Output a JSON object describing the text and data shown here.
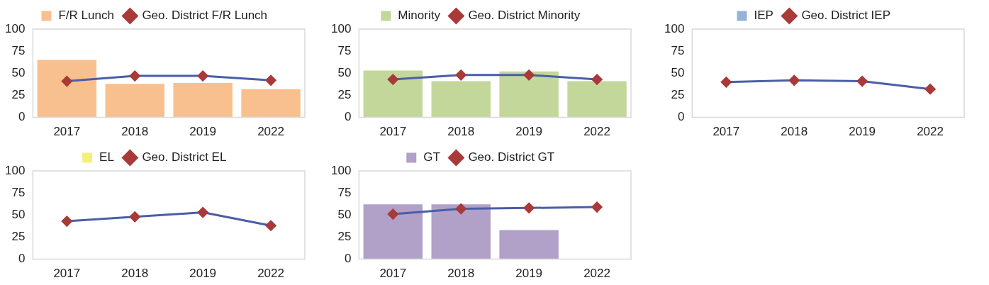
{
  "chart_data": [
    {
      "type": "bar",
      "categories": [
        "2017",
        "2018",
        "2019",
        "2022"
      ],
      "ylim": [
        0,
        100
      ],
      "yticks": [
        0,
        25,
        50,
        75,
        100
      ],
      "grid": false,
      "legend": "top",
      "series": [
        {
          "name": "F/R Lunch",
          "color": "#f9c08f",
          "values": [
            65,
            38,
            39,
            32
          ]
        },
        {
          "name": "Geo. District F/R Lunch",
          "type": "line",
          "color": "#4a5ea8",
          "colors": [
            "#a83a3a",
            "#a83a3a",
            "#a83a3a",
            "#a83a3a"
          ],
          "marker": "diamond",
          "values": [
            41,
            47,
            47,
            42
          ]
        }
      ]
    },
    {
      "type": "bar",
      "categories": [
        "2017",
        "2018",
        "2019",
        "2022"
      ],
      "ylim": [
        0,
        100
      ],
      "yticks": [
        0,
        25,
        50,
        75,
        100
      ],
      "grid": false,
      "legend": "top",
      "series": [
        {
          "name": "Minority",
          "color": "#c4d79b",
          "values": [
            53,
            41,
            52,
            41
          ]
        },
        {
          "name": "Geo. District Minority",
          "type": "line",
          "color": "#4a5ea8",
          "colors": [
            "#a83a3a",
            "#a83a3a",
            "#a83a3a",
            "#a83a3a"
          ],
          "marker": "diamond",
          "values": [
            43,
            48,
            48,
            43
          ]
        }
      ]
    },
    {
      "type": "bar",
      "categories": [
        "2017",
        "2018",
        "2019",
        "2022"
      ],
      "ylim": [
        0,
        100
      ],
      "yticks": [
        0,
        25,
        50,
        75,
        100
      ],
      "grid": false,
      "legend": "top",
      "series": [
        {
          "name": "IEP",
          "color": "#95b3d7",
          "values": [
            null,
            null,
            null,
            null
          ]
        },
        {
          "name": "Geo. District IEP",
          "type": "line",
          "color": "#4a5ea8",
          "colors": [
            "#a83a3a",
            "#a83a3a",
            "#a83a3a",
            "#a83a3a"
          ],
          "marker": "diamond",
          "values": [
            40,
            42,
            41,
            32
          ]
        }
      ]
    },
    {
      "type": "bar",
      "categories": [
        "2017",
        "2018",
        "2019",
        "2022"
      ],
      "ylim": [
        0,
        100
      ],
      "yticks": [
        0,
        25,
        50,
        75,
        100
      ],
      "grid": false,
      "legend": "top",
      "series": [
        {
          "name": "EL",
          "color": "#f5f07a",
          "values": [
            null,
            null,
            null,
            null
          ]
        },
        {
          "name": "Geo. District EL",
          "type": "line",
          "color": "#4a5ea8",
          "colors": [
            "#a83a3a",
            "#a83a3a",
            "#a83a3a",
            "#a83a3a"
          ],
          "marker": "diamond",
          "values": [
            43,
            48,
            53,
            38
          ]
        }
      ]
    },
    {
      "type": "bar",
      "categories": [
        "2017",
        "2018",
        "2019",
        "2022"
      ],
      "ylim": [
        0,
        100
      ],
      "yticks": [
        0,
        25,
        50,
        75,
        100
      ],
      "grid": false,
      "legend": "top",
      "series": [
        {
          "name": "GT",
          "color": "#b1a0c7",
          "values": [
            62,
            62,
            33,
            null
          ]
        },
        {
          "name": "Geo. District GT",
          "type": "line",
          "color": "#4a5ea8",
          "colors": [
            "#a83a3a",
            "#a83a3a",
            "#a83a3a",
            "#a83a3a"
          ],
          "marker": "diamond",
          "values": [
            51,
            57,
            58,
            59
          ]
        }
      ]
    }
  ]
}
